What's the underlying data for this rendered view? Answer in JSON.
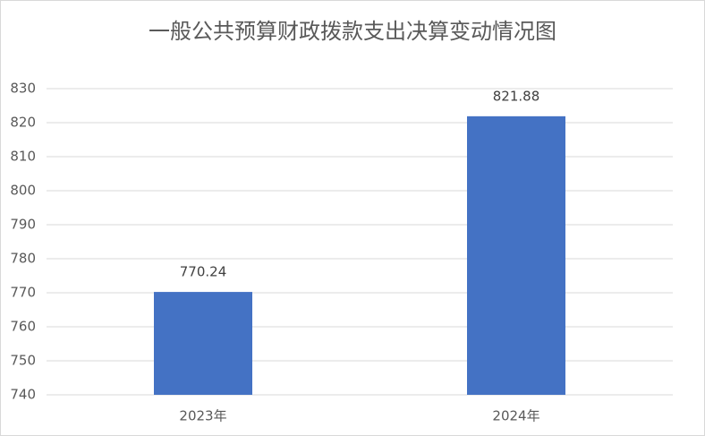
{
  "chart_data": {
    "type": "bar",
    "title": "一般公共预算财政拨款支出决算变动情况图",
    "categories": [
      "2023年",
      "2024年"
    ],
    "values": [
      770.24,
      821.88
    ],
    "color": "#4472c4",
    "ylim": [
      740,
      830
    ],
    "yticks": [
      740,
      750,
      760,
      770,
      780,
      790,
      800,
      810,
      820,
      830
    ],
    "grid": true
  }
}
